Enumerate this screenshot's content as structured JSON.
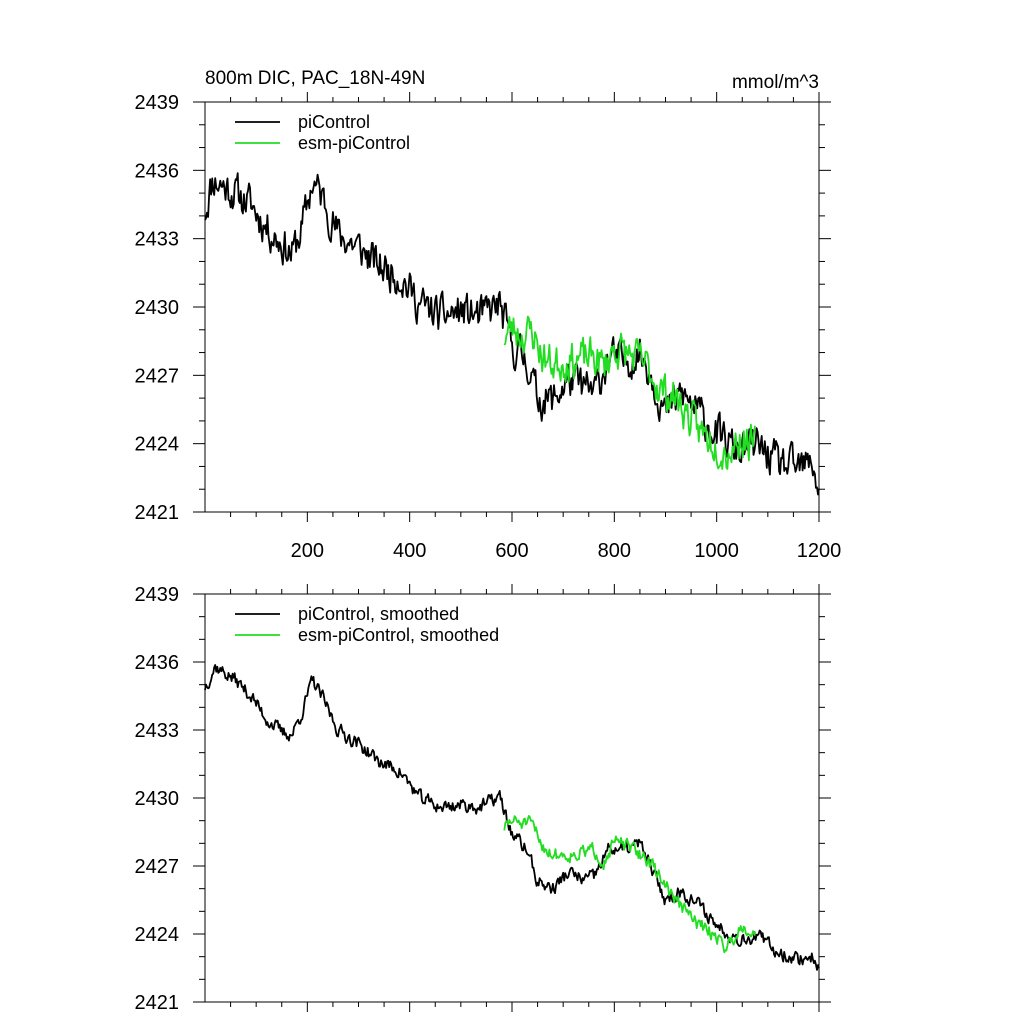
{
  "chart_data": [
    {
      "type": "line",
      "title": "800m DIC, PAC_18N-49N",
      "units": "mmol/m^3",
      "xlim": [
        0,
        1200
      ],
      "ylim": [
        2421,
        2439
      ],
      "yticks": [
        2421,
        2424,
        2427,
        2430,
        2433,
        2436,
        2439
      ],
      "xticks": [
        200,
        400,
        600,
        800,
        1000,
        1200
      ],
      "show_x_tick_labels": true,
      "legend_position": "top-left",
      "series": [
        {
          "name": "piControl",
          "color": "#000000",
          "anchors": [
            [
              0,
              2434.2
            ],
            [
              15,
              2435.6
            ],
            [
              60,
              2435.0
            ],
            [
              90,
              2434.5
            ],
            [
              120,
              2433.5
            ],
            [
              150,
              2432.8
            ],
            [
              170,
              2432.3
            ],
            [
              190,
              2433.5
            ],
            [
              210,
              2435.5
            ],
            [
              230,
              2434.8
            ],
            [
              260,
              2433.2
            ],
            [
              300,
              2432.6
            ],
            [
              340,
              2431.8
            ],
            [
              380,
              2431.4
            ],
            [
              420,
              2430.1
            ],
            [
              460,
              2429.6
            ],
            [
              500,
              2429.8
            ],
            [
              540,
              2429.6
            ],
            [
              575,
              2430.1
            ],
            [
              600,
              2428.3
            ],
            [
              630,
              2427.6
            ],
            [
              650,
              2426.0
            ],
            [
              680,
              2425.9
            ],
            [
              710,
              2426.8
            ],
            [
              740,
              2426.5
            ],
            [
              760,
              2426.2
            ],
            [
              790,
              2427.8
            ],
            [
              820,
              2427.6
            ],
            [
              850,
              2428.0
            ],
            [
              870,
              2427.2
            ],
            [
              900,
              2425.3
            ],
            [
              930,
              2426.2
            ],
            [
              960,
              2425.5
            ],
            [
              1000,
              2424.4
            ],
            [
              1040,
              2423.7
            ],
            [
              1080,
              2423.9
            ],
            [
              1120,
              2423.1
            ],
            [
              1160,
              2422.9
            ],
            [
              1190,
              2423.1
            ],
            [
              1200,
              2421.7
            ]
          ],
          "noise": 0.8,
          "seed": 11,
          "start": 0
        },
        {
          "name": "esm-piControl",
          "color": "#22dd22",
          "anchors": [
            [
              585,
              2428.7
            ],
            [
              600,
              2429.1
            ],
            [
              620,
              2428.8
            ],
            [
              640,
              2428.9
            ],
            [
              660,
              2427.8
            ],
            [
              680,
              2427.5
            ],
            [
              720,
              2427.7
            ],
            [
              760,
              2427.8
            ],
            [
              780,
              2427.4
            ],
            [
              800,
              2428.2
            ],
            [
              830,
              2427.9
            ],
            [
              860,
              2427.5
            ],
            [
              890,
              2426.4
            ],
            [
              920,
              2426.0
            ],
            [
              960,
              2424.7
            ],
            [
              1000,
              2424.0
            ],
            [
              1020,
              2423.6
            ],
            [
              1050,
              2424.3
            ],
            [
              1075,
              2423.9
            ]
          ],
          "noise": 0.8,
          "seed": 23,
          "start": 585
        }
      ]
    },
    {
      "type": "line",
      "title": "",
      "units": "",
      "xlim": [
        0,
        1200
      ],
      "ylim": [
        2421,
        2439
      ],
      "yticks": [
        2421,
        2424,
        2427,
        2430,
        2433,
        2436,
        2439
      ],
      "xticks": [
        200,
        400,
        600,
        800,
        1000,
        1200
      ],
      "show_x_tick_labels": false,
      "legend_position": "top-left",
      "series": [
        {
          "name": "piControl, smoothed",
          "color": "#000000",
          "anchors": [
            [
              0,
              2434.9
            ],
            [
              20,
              2435.8
            ],
            [
              60,
              2435.2
            ],
            [
              90,
              2434.5
            ],
            [
              120,
              2433.5
            ],
            [
              150,
              2432.9
            ],
            [
              170,
              2432.8
            ],
            [
              190,
              2433.8
            ],
            [
              210,
              2435.2
            ],
            [
              230,
              2434.4
            ],
            [
              260,
              2433.0
            ],
            [
              300,
              2432.4
            ],
            [
              340,
              2431.6
            ],
            [
              380,
              2431.2
            ],
            [
              420,
              2430.0
            ],
            [
              460,
              2429.6
            ],
            [
              500,
              2429.7
            ],
            [
              540,
              2429.6
            ],
            [
              575,
              2430.1
            ],
            [
              600,
              2428.4
            ],
            [
              630,
              2427.7
            ],
            [
              650,
              2426.3
            ],
            [
              680,
              2426.0
            ],
            [
              710,
              2426.7
            ],
            [
              740,
              2426.4
            ],
            [
              760,
              2426.5
            ],
            [
              790,
              2427.8
            ],
            [
              820,
              2427.7
            ],
            [
              850,
              2428.0
            ],
            [
              870,
              2427.0
            ],
            [
              900,
              2425.5
            ],
            [
              930,
              2425.9
            ],
            [
              960,
              2425.4
            ],
            [
              1000,
              2424.4
            ],
            [
              1040,
              2423.8
            ],
            [
              1080,
              2423.9
            ],
            [
              1120,
              2423.2
            ],
            [
              1160,
              2422.9
            ],
            [
              1190,
              2423.0
            ],
            [
              1200,
              2422.4
            ]
          ],
          "noise": 0.3,
          "seed": 37,
          "start": 0
        },
        {
          "name": "esm-piControl, smoothed",
          "color": "#22dd22",
          "anchors": [
            [
              585,
              2428.7
            ],
            [
              600,
              2429.0
            ],
            [
              620,
              2428.9
            ],
            [
              640,
              2428.8
            ],
            [
              660,
              2427.9
            ],
            [
              680,
              2427.5
            ],
            [
              720,
              2427.5
            ],
            [
              760,
              2427.7
            ],
            [
              780,
              2427.2
            ],
            [
              800,
              2428.1
            ],
            [
              830,
              2427.8
            ],
            [
              860,
              2427.4
            ],
            [
              890,
              2426.5
            ],
            [
              920,
              2425.5
            ],
            [
              960,
              2424.5
            ],
            [
              1000,
              2423.9
            ],
            [
              1020,
              2423.4
            ],
            [
              1050,
              2424.4
            ],
            [
              1075,
              2424.0
            ]
          ],
          "noise": 0.3,
          "seed": 51,
          "start": 585
        }
      ]
    }
  ]
}
